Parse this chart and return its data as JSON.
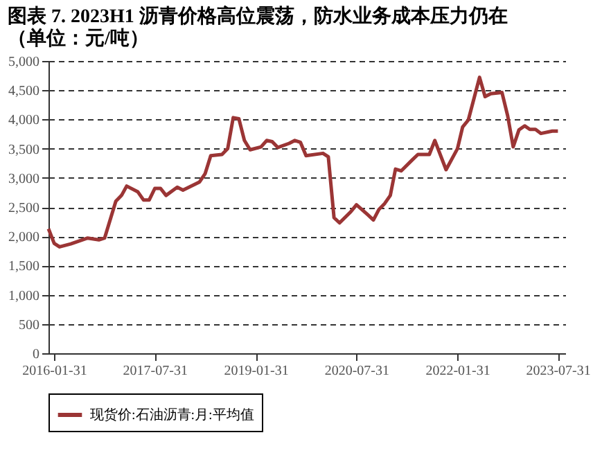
{
  "chart_data": {
    "type": "line",
    "title": "图表 7. 2023H1 沥青价格高位震荡，防水业务成本压力仍在（单位：元/吨）",
    "x": [
      "2016-01",
      "2016-02",
      "2016-03",
      "2016-05",
      "2016-08",
      "2016-10",
      "2016-11",
      "2017-01",
      "2017-02",
      "2017-03",
      "2017-05",
      "2017-06",
      "2017-07",
      "2017-08",
      "2017-09",
      "2017-10",
      "2017-12",
      "2018-01",
      "2018-04",
      "2018-05",
      "2018-06",
      "2018-08",
      "2018-09",
      "2018-10",
      "2018-11",
      "2018-12",
      "2019-01",
      "2019-03",
      "2019-04",
      "2019-05",
      "2019-06",
      "2019-08",
      "2019-09",
      "2019-10",
      "2019-11",
      "2020-02",
      "2020-03",
      "2020-04",
      "2020-05",
      "2020-07",
      "2020-08",
      "2020-10",
      "2020-11",
      "2020-12",
      "2021-01",
      "2021-02",
      "2021-03",
      "2021-04",
      "2021-06",
      "2021-07",
      "2021-09",
      "2021-10",
      "2021-12",
      "2022-02",
      "2022-03",
      "2022-04",
      "2022-06",
      "2022-07",
      "2022-08",
      "2022-10",
      "2022-11",
      "2022-12",
      "2023-01",
      "2023-02",
      "2023-03",
      "2023-04",
      "2023-05",
      "2023-07",
      "2023-08"
    ],
    "series": [
      {
        "name": "现货价:石油沥青:月:平均值",
        "color": "#9b3535",
        "values": [
          2130,
          1880,
          1820,
          1870,
          1970,
          1940,
          1970,
          2600,
          2700,
          2860,
          2760,
          2620,
          2620,
          2820,
          2820,
          2700,
          2840,
          2790,
          2930,
          3070,
          3380,
          3400,
          3500,
          4030,
          4010,
          3640,
          3480,
          3530,
          3640,
          3620,
          3520,
          3590,
          3640,
          3610,
          3380,
          3420,
          3360,
          2320,
          2230,
          2420,
          2540,
          2370,
          2280,
          2460,
          2560,
          2700,
          3150,
          3120,
          3310,
          3400,
          3400,
          3640,
          3140,
          3500,
          3870,
          3990,
          4720,
          4390,
          4440,
          4460,
          4060,
          3530,
          3820,
          3890,
          3830,
          3830,
          3760,
          3800,
          3800
        ]
      }
    ],
    "xlim": [
      "2016-01-01",
      "2023-09-10"
    ],
    "xticks": [
      "2016-01-31",
      "2017-07-31",
      "2019-01-31",
      "2020-07-31",
      "2022-01-31",
      "2023-07-31"
    ],
    "ylim": [
      0,
      5000
    ],
    "yticks": [
      {
        "value": 0,
        "label": "0"
      },
      {
        "value": 500,
        "label": "500"
      },
      {
        "value": 1000,
        "label": "1,000"
      },
      {
        "value": 1500,
        "label": "1,500"
      },
      {
        "value": 2000,
        "label": "2,000"
      },
      {
        "value": 2500,
        "label": "2,500"
      },
      {
        "value": 3000,
        "label": "3,000"
      },
      {
        "value": 3500,
        "label": "3,500"
      },
      {
        "value": 4000,
        "label": "4,000"
      },
      {
        "value": 4500,
        "label": "4,500"
      },
      {
        "value": 5000,
        "label": "5,000"
      }
    ],
    "grid": "y",
    "legend": "bottom",
    "marker": "none",
    "line_style": "solid"
  }
}
